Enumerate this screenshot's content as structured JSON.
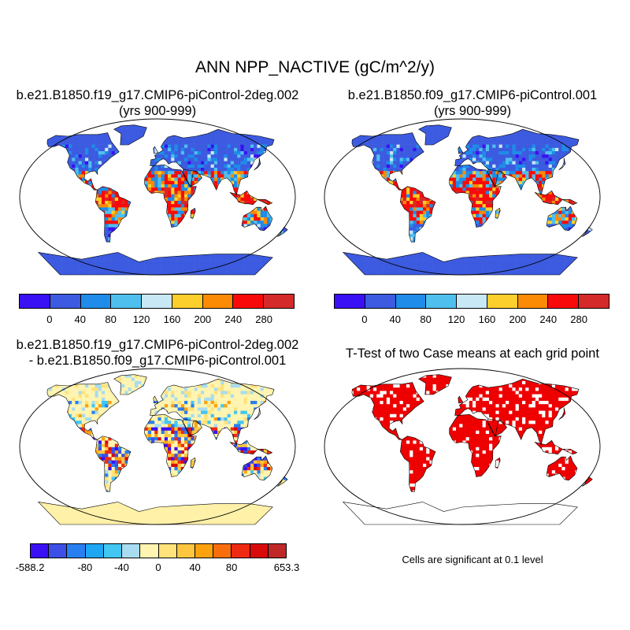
{
  "title": "ANN NPP_NACTIVE (gC/m^2/y)",
  "panels": [
    {
      "title_line1": "b.e21.B1850.f19_g17.CMIP6-piControl-2deg.002",
      "title_line2": "(yrs 900-999)",
      "scheme": "abs1"
    },
    {
      "title_line1": "b.e21.B1850.f09_g17.CMIP6-piControl.001",
      "title_line2": "(yrs 900-999)",
      "scheme": "abs2"
    },
    {
      "title_line1": "b.e21.B1850.f19_g17.CMIP6-piControl-2deg.002",
      "title_line2": "- b.e21.B1850.f09_g17.CMIP6-piControl.001",
      "scheme": "diff"
    },
    {
      "title_line1": "T-Test of two Case means at each grid point",
      "title_line2": "",
      "scheme": "ttest"
    }
  ],
  "colorbar_abs": {
    "colors": [
      "#3a10f5",
      "#3c5be0",
      "#1e8ce8",
      "#4fc0ee",
      "#c9e8f5",
      "#fccf2c",
      "#fb8a05",
      "#f80a0a",
      "#d42a2a"
    ],
    "tick_labels": [
      "0",
      "40",
      "80",
      "120",
      "160",
      "200",
      "240",
      "280"
    ]
  },
  "colorbar_diff": {
    "colors": [
      "#3a10f5",
      "#3c4fe6",
      "#2a7ff0",
      "#1ea6f2",
      "#42c6f2",
      "#a8dcf0",
      "#fff4b0",
      "#ffe27a",
      "#fdc640",
      "#fca20e",
      "#f86e0c",
      "#ee2a10",
      "#d80a0a",
      "#c02828"
    ],
    "tick_labels": [
      "-588.2",
      "-80",
      "-40",
      "0",
      "40",
      "80",
      "653.3"
    ]
  },
  "ttest_note": "Cells are significant at 0.1 level",
  "map_colors": {
    "land_outline": "#000000",
    "ocean": "#ffffff",
    "significant": "#ee0000",
    "not_significant": "#ffffff",
    "diff_base": "#fff1a8"
  }
}
